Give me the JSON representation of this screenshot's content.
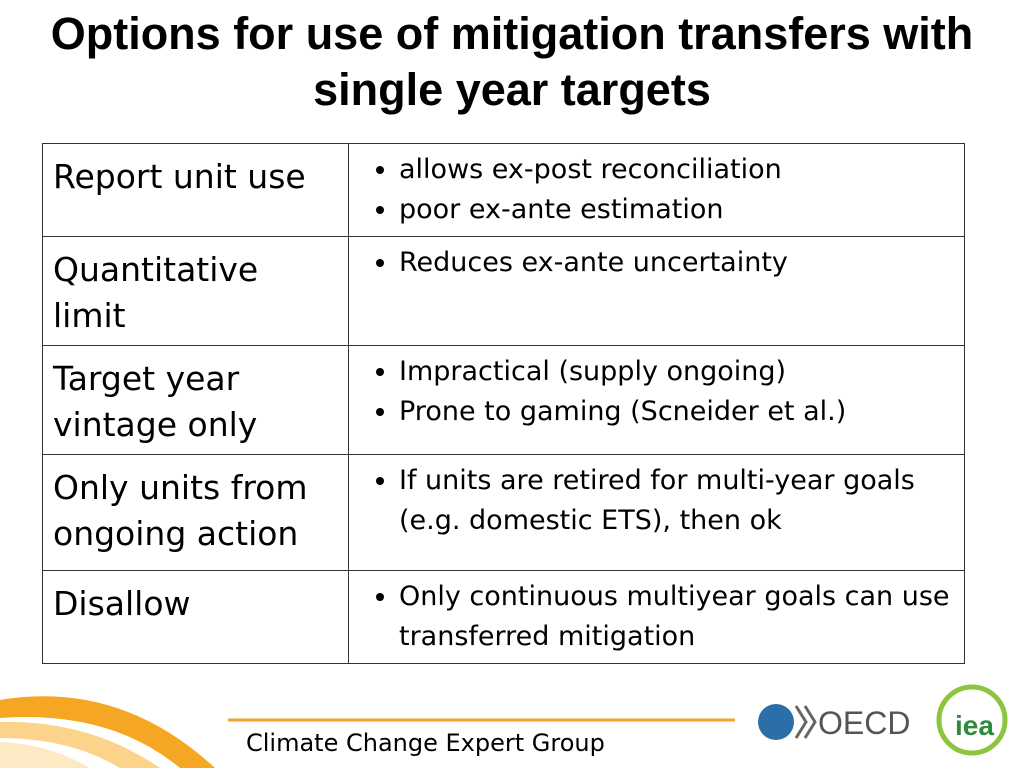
{
  "title": "Options for use of mitigation transfers with single year targets",
  "table": {
    "rows": [
      {
        "option": "Report unit use",
        "points": [
          "allows ex-post reconciliation",
          "poor ex-ante estimation"
        ]
      },
      {
        "option": "Quantitative limit",
        "points": [
          "Reduces ex-ante uncertainty"
        ]
      },
      {
        "option": "Target year vintage only",
        "points": [
          "Impractical (supply ongoing)",
          "Prone to gaming (Scneider et al.)"
        ]
      },
      {
        "option": "Only units from ongoing action",
        "points": [
          "If units are retired for multi-year goals (e.g. domestic ETS), then ok"
        ]
      },
      {
        "option": "Disallow",
        "points": [
          "Only continuous multiyear goals can use transferred mitigation"
        ]
      }
    ]
  },
  "footer": {
    "text": "Climate Change Expert Group",
    "logos": [
      "OECD",
      "iea"
    ]
  }
}
